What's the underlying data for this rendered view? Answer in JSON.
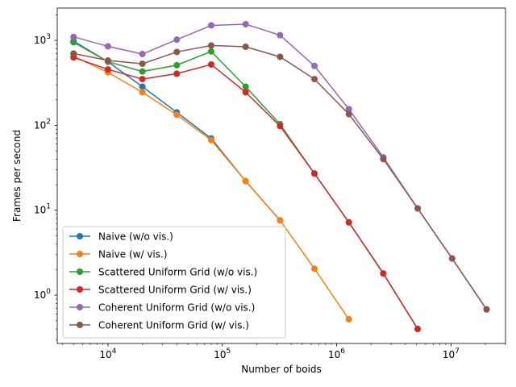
{
  "chart_data": {
    "type": "line",
    "title": "",
    "xlabel": "Number of boids",
    "ylabel": "Frames per second",
    "xscale": "log",
    "yscale": "log",
    "xlim": [
      3600,
      30000000
    ],
    "ylim": [
      0.27,
      2400
    ],
    "x_ticks": [
      {
        "value": 10000,
        "base": "10",
        "exp": "4"
      },
      {
        "value": 100000,
        "base": "10",
        "exp": "5"
      },
      {
        "value": 1000000,
        "base": "10",
        "exp": "6"
      },
      {
        "value": 10000000,
        "base": "10",
        "exp": "7"
      }
    ],
    "y_ticks": [
      {
        "value": 1,
        "base": "10",
        "exp": "0"
      },
      {
        "value": 10,
        "base": "10",
        "exp": "1"
      },
      {
        "value": 100,
        "base": "10",
        "exp": "2"
      },
      {
        "value": 1000,
        "base": "10",
        "exp": "3"
      }
    ],
    "grid": false,
    "legend_position": "lower-left",
    "series": [
      {
        "name": "Naive (w/o vis.)",
        "color": "#1f77b4",
        "x": [
          5000,
          10000,
          20000,
          40000,
          80000,
          160000,
          320000
        ],
        "y": [
          980,
          560,
          285,
          142,
          70,
          22,
          7.6
        ]
      },
      {
        "name": "Naive (w/ vis.)",
        "color": "#ff7f0e",
        "x": [
          5000,
          10000,
          20000,
          40000,
          80000,
          160000,
          320000,
          640000,
          1280000
        ],
        "y": [
          650,
          420,
          245,
          133,
          67,
          22,
          7.6,
          2.05,
          0.52
        ]
      },
      {
        "name": "Scattered Uniform Grid (w/o vis.)",
        "color": "#2ca02c",
        "x": [
          5000,
          10000,
          20000,
          40000,
          80000,
          160000,
          320000,
          640000,
          1280000,
          2560000,
          5120000
        ],
        "y": [
          950,
          560,
          430,
          510,
          740,
          285,
          103,
          27,
          7.2,
          1.8,
          0.4
        ]
      },
      {
        "name": "Scattered Uniform Grid (w/ vis.)",
        "color": "#d62728",
        "x": [
          5000,
          10000,
          20000,
          40000,
          80000,
          160000,
          320000,
          640000,
          1280000,
          2560000,
          5120000
        ],
        "y": [
          630,
          455,
          350,
          405,
          520,
          245,
          98,
          27,
          7.2,
          1.8,
          0.4
        ]
      },
      {
        "name": "Coherent Uniform Grid (w/o vis.)",
        "color": "#9467bd",
        "x": [
          5000,
          10000,
          20000,
          40000,
          80000,
          160000,
          320000,
          640000,
          1280000,
          2560000,
          5120000,
          10240000,
          20480000
        ],
        "y": [
          1100,
          850,
          690,
          1020,
          1500,
          1550,
          1150,
          500,
          155,
          42,
          10.5,
          2.7,
          0.68
        ]
      },
      {
        "name": "Coherent Uniform Grid (w/ vis.)",
        "color": "#8c564b",
        "x": [
          5000,
          10000,
          20000,
          40000,
          80000,
          160000,
          320000,
          640000,
          1280000,
          2560000,
          5120000,
          10240000,
          20480000
        ],
        "y": [
          700,
          580,
          530,
          730,
          870,
          840,
          640,
          350,
          135,
          40,
          10.5,
          2.7,
          0.68
        ]
      }
    ]
  }
}
